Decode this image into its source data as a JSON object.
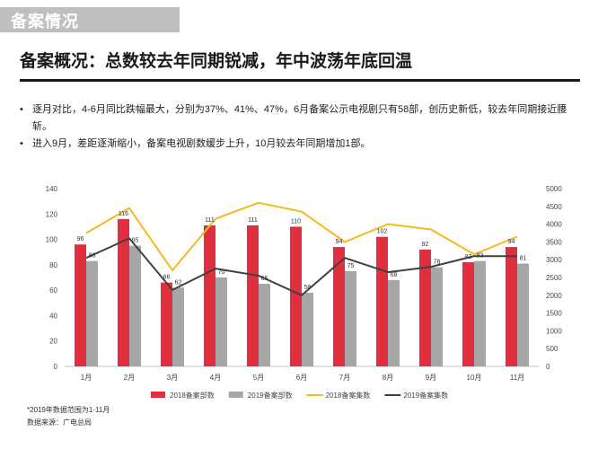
{
  "slide": {
    "section_tag": "备案情况",
    "headline": "备案概况：总数较去年同期锐减，年中波荡年底回温",
    "bullets": [
      "逐月对比，4-6月同比跌幅最大，分别为37%、41%、47%，6月备案公示电视剧只有58部，创历史新低，较去年同期接近腰斩。",
      "进入9月，差距逐渐缩小，备案电视剧数缓步上升，10月较去年同期增加1部。"
    ],
    "bullet_marker": "•",
    "footnote": "*2019年数据范围为1-11月",
    "source": "数据来源：广电总局"
  },
  "chart_data": {
    "type": "bar",
    "categories": [
      "1月",
      "2月",
      "3月",
      "4月",
      "5月",
      "6月",
      "7月",
      "8月",
      "9月",
      "10月",
      "11月"
    ],
    "series": [
      {
        "name": "2018备案部数",
        "kind": "bar",
        "axis": "left",
        "color": "#e0303f",
        "values": [
          96,
          116,
          66,
          111,
          111,
          110,
          94,
          102,
          92,
          82,
          94
        ]
      },
      {
        "name": "2019备案部数",
        "kind": "bar",
        "axis": "left",
        "color": "#a6a6a6",
        "values": [
          83,
          95,
          62,
          70,
          65,
          58,
          75,
          68,
          78,
          83,
          81
        ]
      },
      {
        "name": "2018备案集数",
        "kind": "line",
        "axis": "right",
        "color": "#f5b91e",
        "values": [
          3750,
          4450,
          2700,
          4150,
          4600,
          4350,
          3500,
          4000,
          3850,
          3150,
          3650
        ]
      },
      {
        "name": "2019备案集数",
        "kind": "line",
        "axis": "right",
        "color": "#404040",
        "values": [
          3050,
          3600,
          2150,
          2750,
          2550,
          2000,
          3050,
          2650,
          2800,
          3100,
          3100
        ]
      }
    ],
    "bar_labels": [
      {
        "series": "2018备案部数",
        "values": [
          96,
          116,
          66,
          111,
          111,
          110,
          94,
          102,
          92,
          82,
          94
        ]
      },
      {
        "series": "2019备案部数",
        "values": [
          83,
          95,
          62,
          70,
          65,
          58,
          75,
          68,
          78,
          83,
          81
        ]
      }
    ],
    "y_left": {
      "ylim": [
        0,
        140
      ],
      "ticks": [
        "0",
        "20",
        "40",
        "60",
        "80",
        "100",
        "120",
        "140"
      ]
    },
    "y_right": {
      "ylim": [
        0,
        5000
      ],
      "ticks": [
        "0",
        "500",
        "1000",
        "1500",
        "2000",
        "2500",
        "3000",
        "3500",
        "4000",
        "4500",
        "5000"
      ]
    },
    "grid": false,
    "legend_position": "bottom"
  }
}
